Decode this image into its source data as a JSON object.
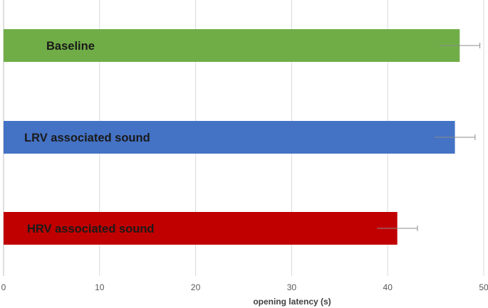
{
  "chart_data": {
    "type": "bar",
    "orientation": "horizontal",
    "categories": [
      "Baseline",
      "LRV associated sound",
      "HRV associated sound"
    ],
    "values": [
      47.5,
      47.0,
      41.0
    ],
    "errors": [
      2.1,
      2.1,
      2.1
    ],
    "colors": [
      "#70ad47",
      "#4472c4",
      "#c00000"
    ],
    "title": "",
    "xlabel": "opening latency (s)",
    "ylabel": "",
    "xlim": [
      0,
      50
    ],
    "xticks": [
      0,
      10,
      20,
      30,
      40,
      50
    ],
    "grid": true,
    "legend": "none"
  }
}
